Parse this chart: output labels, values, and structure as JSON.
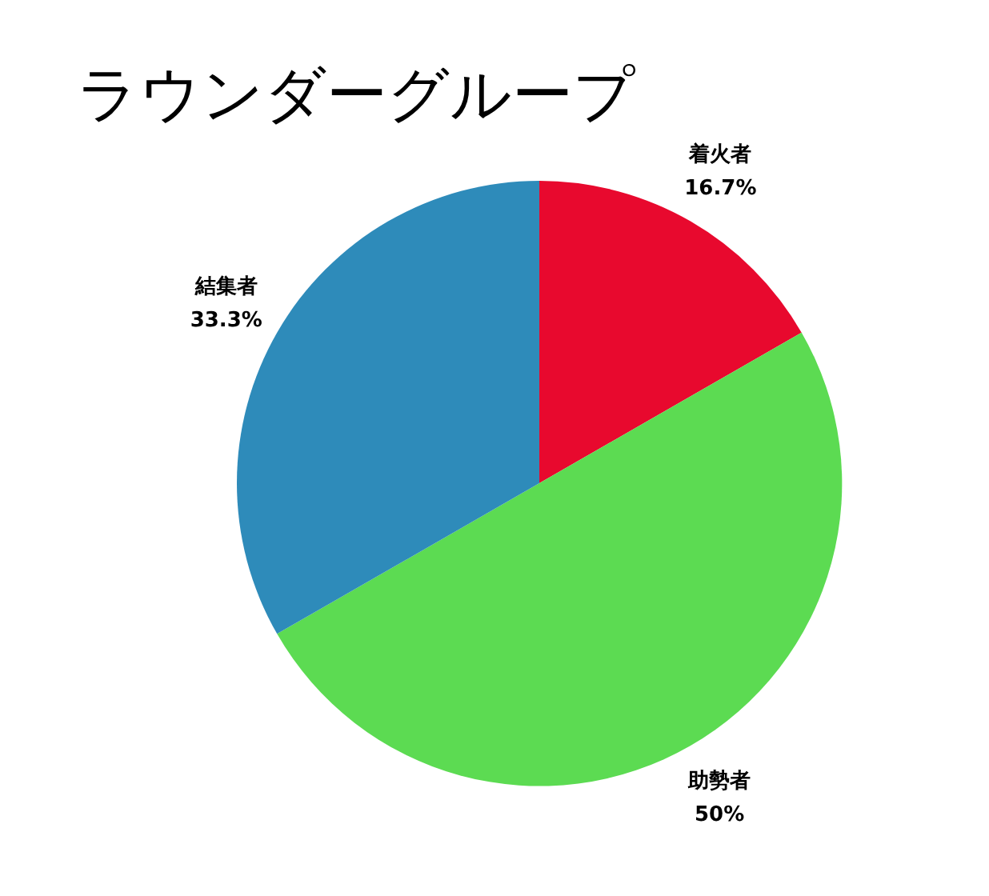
{
  "chart_data": {
    "type": "pie",
    "title": "ラウンダーグループ",
    "categories": [
      "着火者",
      "助勢者",
      "結集者"
    ],
    "values": [
      16.7,
      50,
      33.3
    ],
    "value_labels": [
      "16.7%",
      "50%",
      "33.3%"
    ],
    "colors": [
      "#e8092e",
      "#5cdb52",
      "#2e8bba"
    ],
    "legend": false
  }
}
